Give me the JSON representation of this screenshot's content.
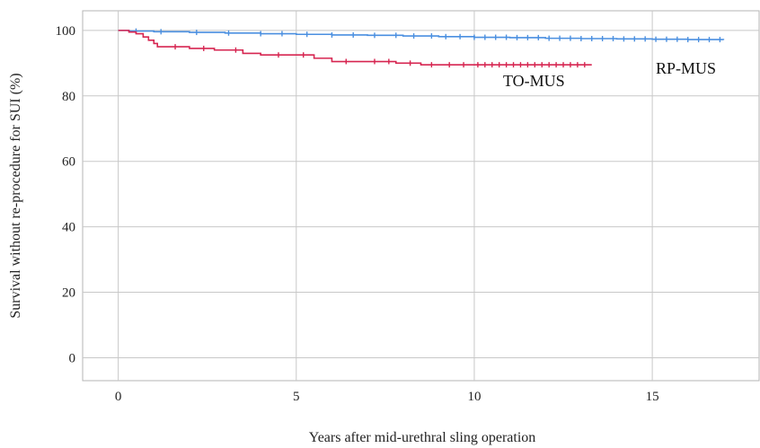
{
  "chart_data": {
    "type": "line",
    "title": "",
    "xlabel": "Years after mid-urethral sling operation",
    "ylabel": "Survival without re-procedure for SUI (%)",
    "xlim": [
      -1,
      18
    ],
    "ylim": [
      -7,
      106
    ],
    "xticks": [
      0,
      5,
      10,
      15
    ],
    "yticks": [
      0,
      20,
      40,
      60,
      80,
      100
    ],
    "grid": true,
    "legend": "none",
    "series": [
      {
        "name": "RP-MUS",
        "color": "#4a8fe0",
        "step": true,
        "x": [
          0,
          0.3,
          1.0,
          2.0,
          3.0,
          4.0,
          5.0,
          6.0,
          7.0,
          8.0,
          9.0,
          10.0,
          11.0,
          12.0,
          13.0,
          14.0,
          15.0,
          16.0,
          17.0
        ],
        "y": [
          100,
          99.8,
          99.6,
          99.4,
          99.2,
          99.0,
          98.8,
          98.6,
          98.5,
          98.3,
          98.1,
          97.9,
          97.8,
          97.6,
          97.5,
          97.4,
          97.3,
          97.2,
          97.1
        ],
        "censor_x": [
          0.5,
          1.2,
          2.2,
          3.1,
          4.0,
          4.6,
          5.3,
          6.0,
          6.6,
          7.2,
          7.8,
          8.3,
          8.8,
          9.2,
          9.6,
          10.0,
          10.3,
          10.6,
          10.9,
          11.2,
          11.5,
          11.8,
          12.1,
          12.4,
          12.7,
          13.0,
          13.3,
          13.6,
          13.9,
          14.2,
          14.5,
          14.8,
          15.1,
          15.4,
          15.7,
          16.0,
          16.3,
          16.6,
          16.9
        ],
        "end_label": "RP-MUS"
      },
      {
        "name": "TO-MUS",
        "color": "#d62550",
        "step": true,
        "x": [
          0,
          0.3,
          0.5,
          0.7,
          0.85,
          1.0,
          1.1,
          2.0,
          2.7,
          3.5,
          4.0,
          5.5,
          6.0,
          7.8,
          8.5,
          13.3
        ],
        "y": [
          100,
          99.5,
          99.0,
          98.0,
          97.0,
          96.0,
          95.0,
          94.5,
          94.0,
          93.0,
          92.5,
          91.5,
          90.5,
          90.0,
          89.5,
          89.5
        ],
        "censor_x": [
          1.6,
          2.4,
          3.3,
          4.5,
          5.2,
          6.4,
          7.2,
          7.6,
          8.2,
          8.8,
          9.3,
          9.7,
          10.1,
          10.3,
          10.5,
          10.7,
          10.9,
          11.1,
          11.3,
          11.5,
          11.7,
          11.9,
          12.1,
          12.3,
          12.5,
          12.7,
          12.9,
          13.1
        ],
        "end_label": "TO-MUS"
      }
    ]
  }
}
